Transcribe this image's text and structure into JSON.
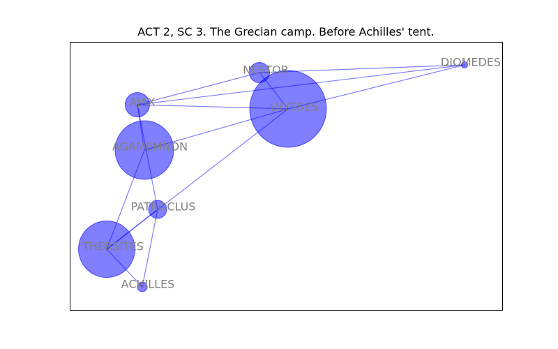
{
  "title": "ACT 2, SC 3. The Grecian camp. Before Achilles' tent.",
  "colors": {
    "node": "#0000ff",
    "edge": "#0000ff",
    "label": "#808080",
    "frame": "#000000"
  },
  "nodes": [
    {
      "id": "NESTOR",
      "label": "NESTOR",
      "weight": 2
    },
    {
      "id": "DIOMEDES",
      "label": "DIOMEDES",
      "weight": 1
    },
    {
      "id": "AJAX",
      "label": "AJAX",
      "weight": 2
    },
    {
      "id": "ULYSSES",
      "label": "ULYSSES",
      "weight": 10
    },
    {
      "id": "AGAMEMNON",
      "label": "AGAMEMNON",
      "weight": 6
    },
    {
      "id": "PATROCLUS",
      "label": "PATROCLUS",
      "weight": 2
    },
    {
      "id": "THERSITES",
      "label": "THERSITES",
      "weight": 6
    },
    {
      "id": "ACHILLES",
      "label": "ACHILLES",
      "weight": 1
    }
  ],
  "edges": [
    [
      "NESTOR",
      "DIOMEDES"
    ],
    [
      "NESTOR",
      "AJAX"
    ],
    [
      "NESTOR",
      "ULYSSES"
    ],
    [
      "AJAX",
      "DIOMEDES"
    ],
    [
      "AJAX",
      "ULYSSES"
    ],
    [
      "AJAX",
      "PATROCLUS"
    ],
    [
      "AJAX",
      "AGAMEMNON"
    ],
    [
      "ULYSSES",
      "DIOMEDES"
    ],
    [
      "ULYSSES",
      "AGAMEMNON"
    ],
    [
      "ULYSSES",
      "THERSITES"
    ],
    [
      "AGAMEMNON",
      "THERSITES"
    ],
    [
      "PATROCLUS",
      "THERSITES"
    ],
    [
      "PATROCLUS",
      "ACHILLES"
    ],
    [
      "THERSITES",
      "ACHILLES"
    ]
  ]
}
